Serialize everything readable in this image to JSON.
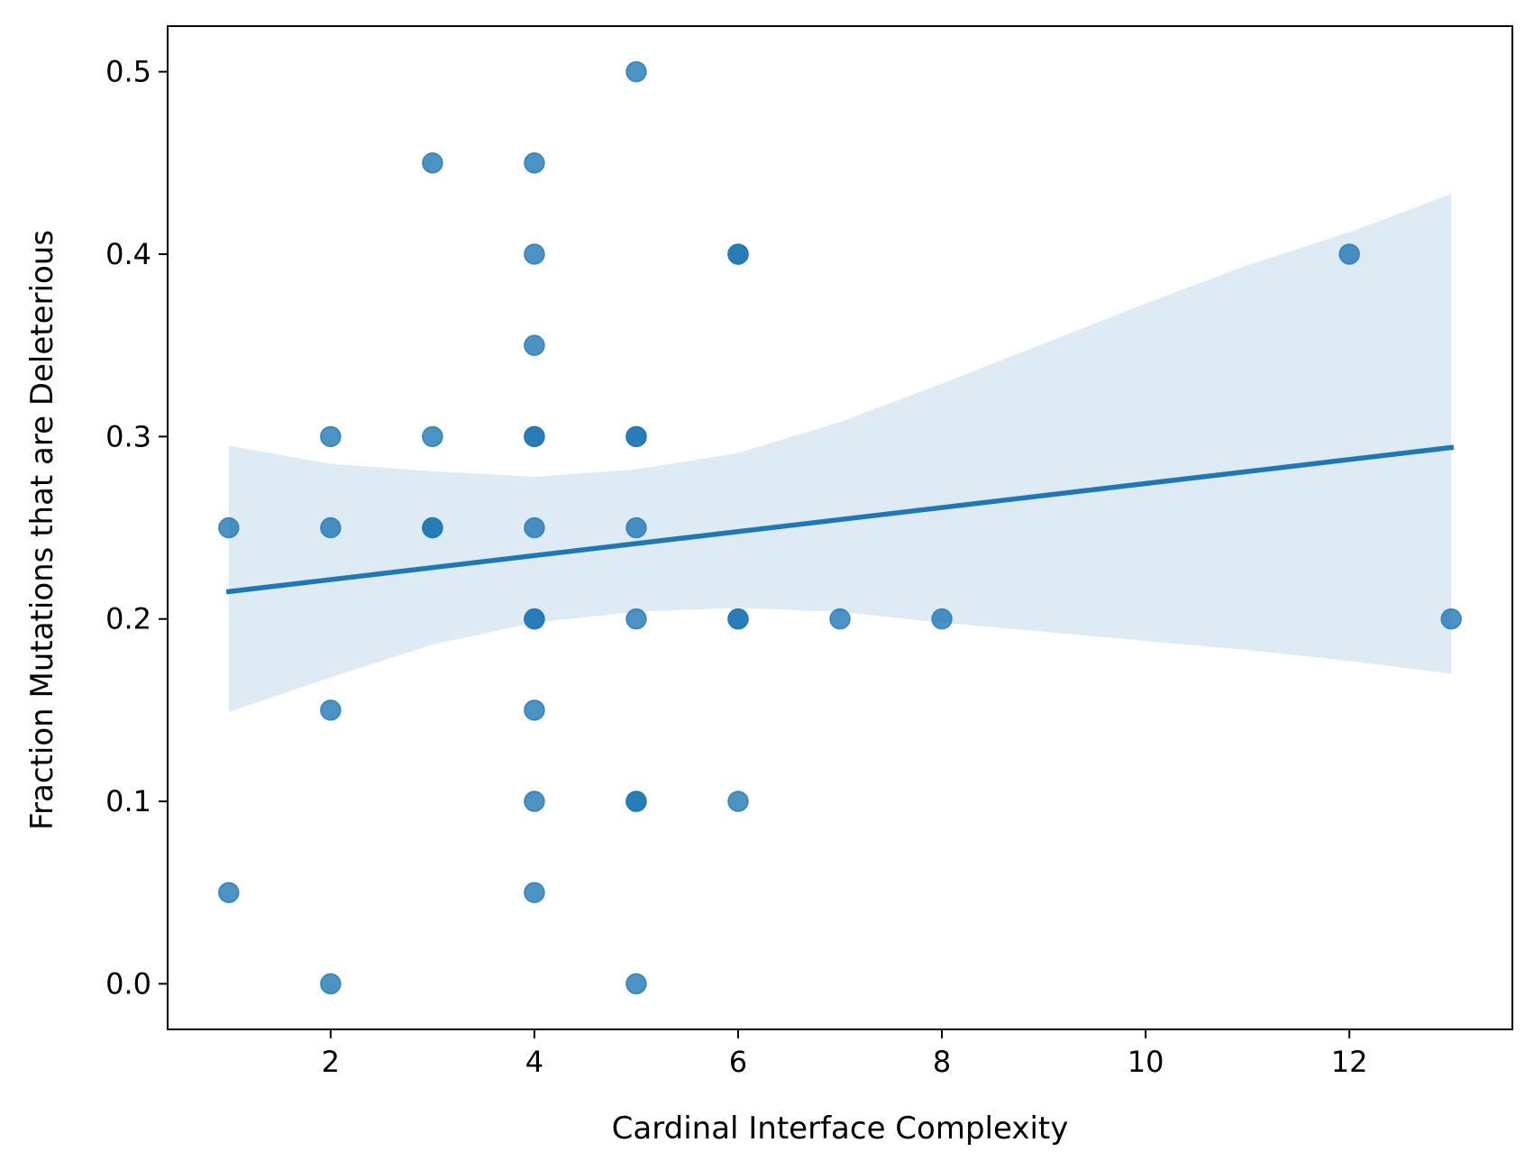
{
  "chart_data": {
    "type": "scatter",
    "title": "",
    "xlabel": "Cardinal Interface Complexity",
    "ylabel": "Fraction Mutations that are Deleterious",
    "xlim": [
      0.4,
      13.6
    ],
    "ylim": [
      -0.025,
      0.525
    ],
    "xticks": [
      2,
      4,
      6,
      8,
      10,
      12
    ],
    "yticks": [
      0.0,
      0.1,
      0.2,
      0.3,
      0.4,
      0.5
    ],
    "xtick_labels": [
      "2",
      "4",
      "6",
      "8",
      "10",
      "12"
    ],
    "ytick_labels": [
      "0.0",
      "0.1",
      "0.2",
      "0.3",
      "0.4",
      "0.5"
    ],
    "grid": false,
    "legend": "none",
    "colors": {
      "points": "#1f77b4",
      "line": "#1f77b4",
      "band": "#1f77b4"
    },
    "points": [
      {
        "x": 1,
        "y": 0.25
      },
      {
        "x": 1,
        "y": 0.05
      },
      {
        "x": 2,
        "y": 0.3
      },
      {
        "x": 2,
        "y": 0.25
      },
      {
        "x": 2,
        "y": 0.15
      },
      {
        "x": 2,
        "y": 0.0
      },
      {
        "x": 3,
        "y": 0.45
      },
      {
        "x": 3,
        "y": 0.3
      },
      {
        "x": 3,
        "y": 0.25
      },
      {
        "x": 3,
        "y": 0.25
      },
      {
        "x": 4,
        "y": 0.45
      },
      {
        "x": 4,
        "y": 0.4
      },
      {
        "x": 4,
        "y": 0.35
      },
      {
        "x": 4,
        "y": 0.3
      },
      {
        "x": 4,
        "y": 0.3
      },
      {
        "x": 4,
        "y": 0.25
      },
      {
        "x": 4,
        "y": 0.2
      },
      {
        "x": 4,
        "y": 0.2
      },
      {
        "x": 4,
        "y": 0.15
      },
      {
        "x": 4,
        "y": 0.1
      },
      {
        "x": 4,
        "y": 0.05
      },
      {
        "x": 5,
        "y": 0.5
      },
      {
        "x": 5,
        "y": 0.3
      },
      {
        "x": 5,
        "y": 0.3
      },
      {
        "x": 5,
        "y": 0.25
      },
      {
        "x": 5,
        "y": 0.2
      },
      {
        "x": 5,
        "y": 0.1
      },
      {
        "x": 5,
        "y": 0.1
      },
      {
        "x": 5,
        "y": 0.0
      },
      {
        "x": 6,
        "y": 0.4
      },
      {
        "x": 6,
        "y": 0.4
      },
      {
        "x": 6,
        "y": 0.2
      },
      {
        "x": 6,
        "y": 0.2
      },
      {
        "x": 6,
        "y": 0.1
      },
      {
        "x": 7,
        "y": 0.2
      },
      {
        "x": 8,
        "y": 0.2
      },
      {
        "x": 12,
        "y": 0.4
      },
      {
        "x": 13,
        "y": 0.2
      }
    ],
    "regression_line": {
      "x": [
        1,
        13
      ],
      "y": [
        0.215,
        0.294
      ]
    },
    "confidence_band": {
      "x": [
        1,
        2,
        3,
        4,
        5,
        6,
        7,
        8,
        9,
        10,
        11,
        12,
        13
      ],
      "upper": [
        0.295,
        0.285,
        0.281,
        0.278,
        0.282,
        0.291,
        0.308,
        0.329,
        0.351,
        0.373,
        0.394,
        0.412,
        0.433
      ],
      "lower": [
        0.149,
        0.168,
        0.186,
        0.198,
        0.204,
        0.206,
        0.204,
        0.198,
        0.193,
        0.188,
        0.183,
        0.177,
        0.17
      ]
    }
  }
}
